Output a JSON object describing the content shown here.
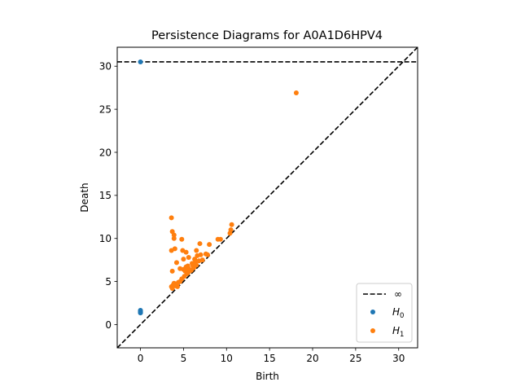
{
  "chart_data": {
    "type": "scatter",
    "title": "Persistence Diagrams for A0A1D6HPV4",
    "xlabel": "Birth",
    "ylabel": "Death",
    "xlim": [
      -2.7,
      32.2
    ],
    "ylim": [
      -2.7,
      32.2
    ],
    "xticks": [
      0,
      5,
      10,
      15,
      20,
      25,
      30
    ],
    "yticks": [
      0,
      5,
      10,
      15,
      20,
      25,
      30
    ],
    "grid": false,
    "legend_position": "lower-right",
    "infinity_line": {
      "label": "∞",
      "y": 30.5,
      "color": "#000000",
      "style": "dashed"
    },
    "diagonal": {
      "color": "#000000",
      "style": "dashed"
    },
    "series": [
      {
        "name": "H0",
        "label_base": "H",
        "label_sub": "0",
        "color": "#1f77b4",
        "points": [
          [
            0,
            30.5
          ],
          [
            0,
            1.35
          ],
          [
            0,
            1.45
          ],
          [
            0,
            1.55
          ],
          [
            0,
            1.65
          ],
          [
            0,
            1.4
          ],
          [
            0,
            1.5
          ],
          [
            0,
            1.6
          ]
        ]
      },
      {
        "name": "H1",
        "label_base": "H",
        "label_sub": "1",
        "color": "#ff7f0e",
        "points": [
          [
            18.1,
            26.9
          ],
          [
            3.6,
            12.4
          ],
          [
            3.7,
            10.8
          ],
          [
            3.9,
            10.4
          ],
          [
            3.9,
            10.0
          ],
          [
            4.8,
            9.9
          ],
          [
            3.6,
            8.6
          ],
          [
            4.0,
            8.8
          ],
          [
            4.9,
            8.6
          ],
          [
            5.3,
            8.4
          ],
          [
            6.5,
            8.6
          ],
          [
            6.9,
            9.4
          ],
          [
            8.0,
            9.3
          ],
          [
            9.0,
            9.9
          ],
          [
            9.3,
            9.9
          ],
          [
            10.4,
            10.6
          ],
          [
            10.5,
            11.0
          ],
          [
            10.6,
            11.6
          ],
          [
            4.2,
            7.2
          ],
          [
            5.0,
            7.6
          ],
          [
            5.6,
            7.8
          ],
          [
            6.3,
            7.6
          ],
          [
            6.6,
            8.0
          ],
          [
            7.0,
            8.1
          ],
          [
            7.6,
            8.2
          ],
          [
            7.8,
            8.1
          ],
          [
            3.7,
            6.2
          ],
          [
            4.6,
            6.5
          ],
          [
            5.0,
            6.4
          ],
          [
            5.3,
            6.7
          ],
          [
            5.6,
            6.5
          ],
          [
            6.0,
            7.1
          ],
          [
            6.4,
            7.3
          ],
          [
            6.8,
            7.4
          ],
          [
            7.2,
            7.5
          ],
          [
            3.6,
            4.4
          ],
          [
            3.7,
            4.2
          ],
          [
            3.9,
            4.8
          ],
          [
            4.1,
            4.5
          ],
          [
            4.3,
            4.4
          ],
          [
            4.6,
            5.0
          ],
          [
            4.8,
            5.3
          ],
          [
            5.1,
            5.6
          ],
          [
            5.4,
            5.9
          ],
          [
            5.6,
            6.1
          ],
          [
            5.9,
            6.3
          ],
          [
            6.2,
            6.6
          ],
          [
            6.5,
            6.9
          ],
          [
            5.2,
            6.2
          ],
          [
            5.5,
            6.8
          ],
          [
            6.1,
            6.8
          ],
          [
            3.8,
            4.6
          ],
          [
            4.4,
            4.9
          ]
        ]
      }
    ]
  }
}
